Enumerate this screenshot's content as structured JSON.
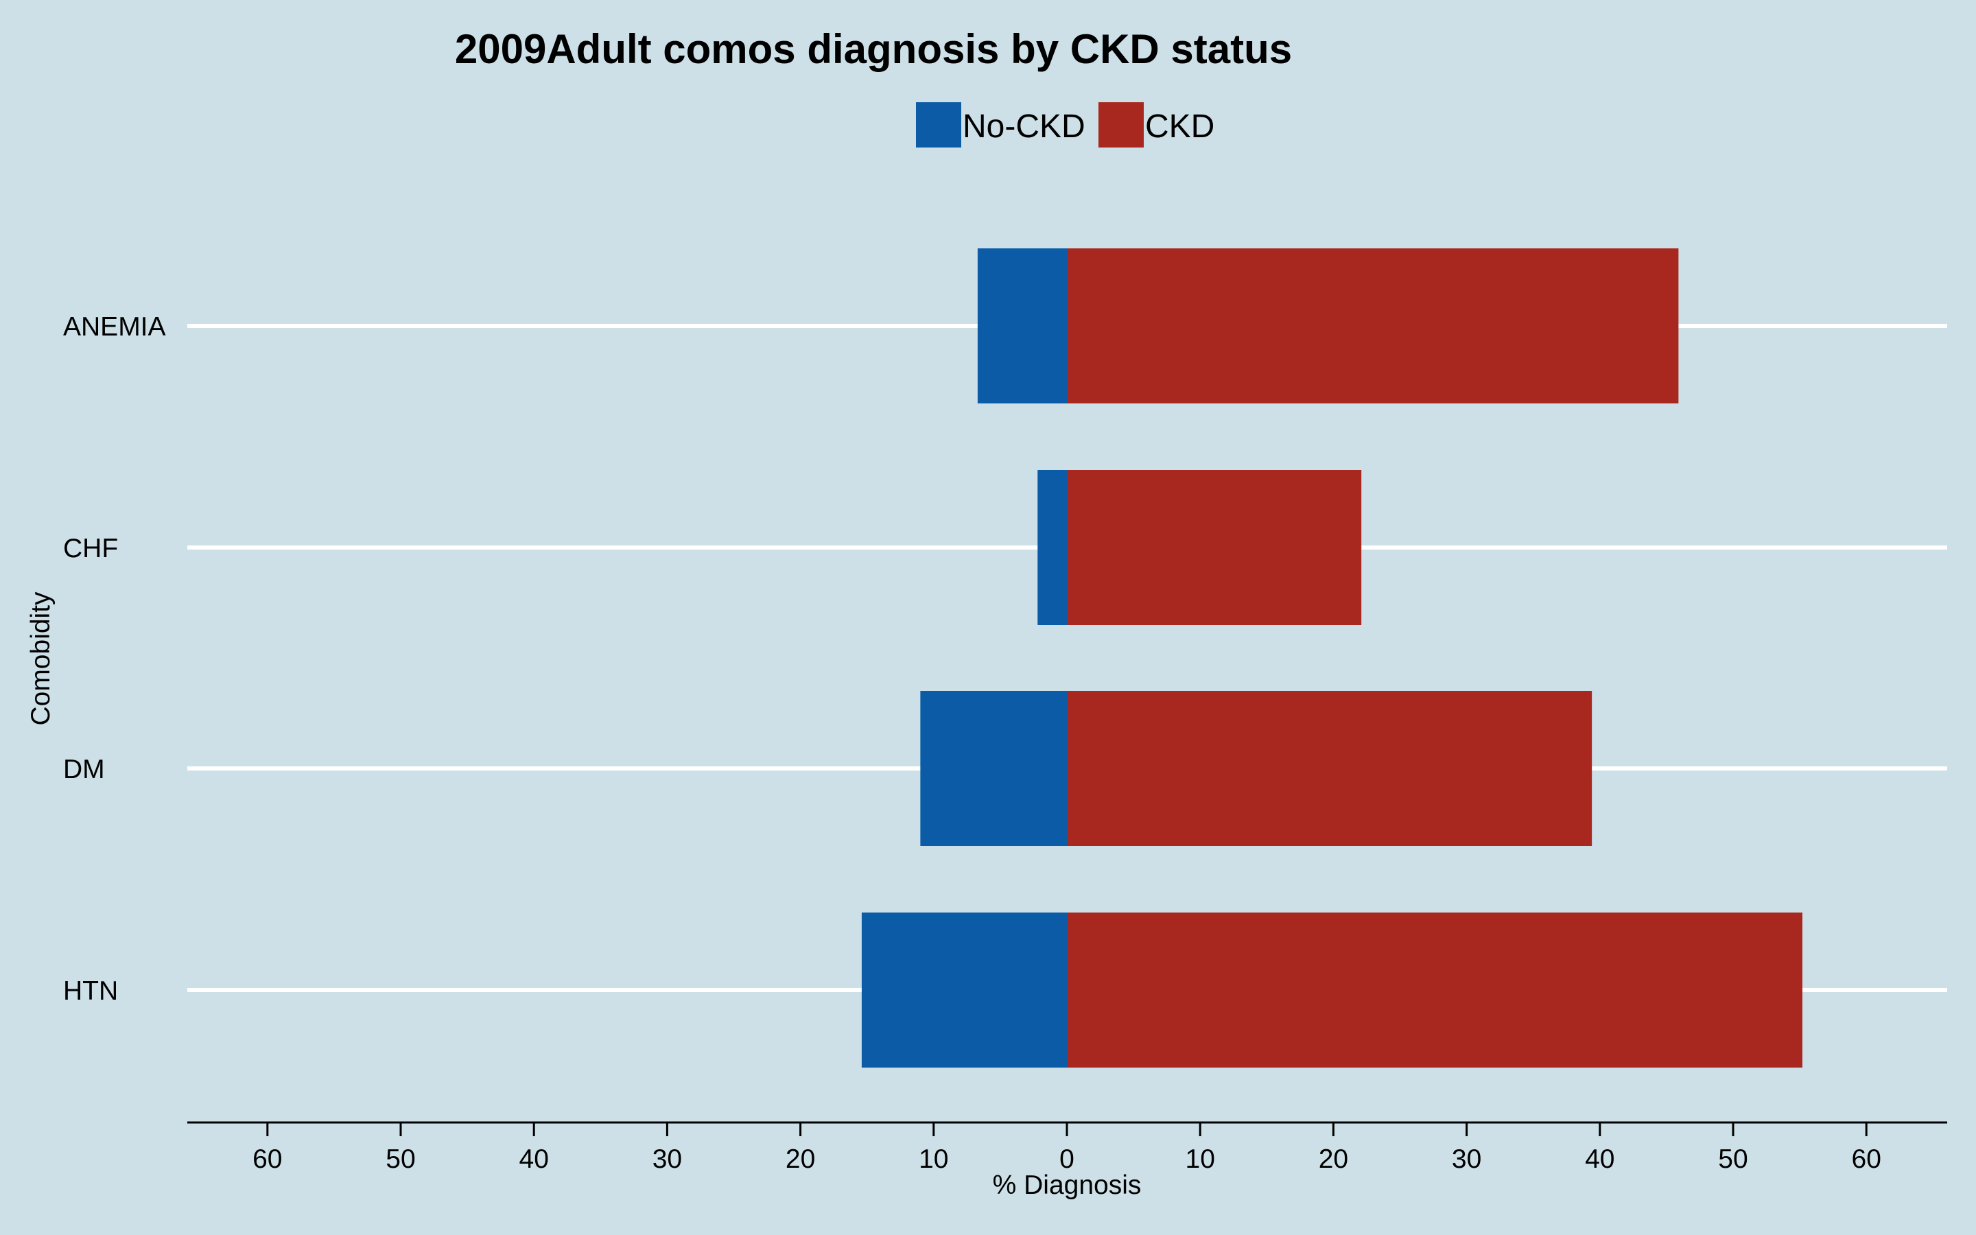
{
  "colors": {
    "background": "#cde0e7",
    "no_ckd": "#0b5ba6",
    "ckd": "#a82820",
    "gridline": "#ffffff",
    "axis": "#000000"
  },
  "chart_data": {
    "type": "bar",
    "orientation": "horizontal",
    "layout": "diverging",
    "title": "2009Adult comos diagnosis by CKD status",
    "xlabel": "% Diagnosis",
    "ylabel": "Comobidity",
    "categories": [
      "ANEMIA",
      "CHF",
      "DM",
      "HTN"
    ],
    "series": [
      {
        "name": "No-CKD",
        "direction": "left",
        "color": "#0b5ba6",
        "values": [
          6.7,
          2.2,
          11.0,
          15.4
        ]
      },
      {
        "name": "CKD",
        "direction": "right",
        "color": "#a82820",
        "values": [
          45.9,
          22.1,
          39.4,
          55.2
        ]
      }
    ],
    "xlim": [
      -66,
      66
    ],
    "xticks": [
      -60,
      -50,
      -40,
      -30,
      -20,
      -10,
      0,
      10,
      20,
      30,
      40,
      50,
      60
    ],
    "xtick_labels": [
      "60",
      "50",
      "40",
      "30",
      "20",
      "10",
      "0",
      "10",
      "20",
      "30",
      "40",
      "50",
      "60"
    ],
    "legend": {
      "position": "top-center",
      "entries": [
        "No-CKD",
        "CKD"
      ]
    },
    "grid": {
      "horizontal": true,
      "vertical": false
    }
  }
}
